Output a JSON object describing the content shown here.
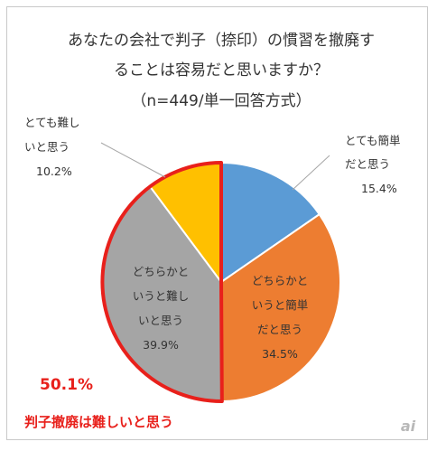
{
  "chart_data": {
    "type": "pie",
    "title_lines": [
      "あなたの会社で判子（捺印）の慣習を撤廃す",
      "ることは容易だと思いますか？",
      "（n=449/単一回答方式）"
    ],
    "slices": [
      {
        "label_lines": [
          "とても簡単",
          "だと思う"
        ],
        "value": 15.4,
        "value_text": "15.4%",
        "color": "#5b9bd5"
      },
      {
        "label_lines": [
          "どちらかと",
          "いうと簡単",
          "だと思う"
        ],
        "value": 34.5,
        "value_text": "34.5%",
        "color": "#ed7d31"
      },
      {
        "label_lines": [
          "どちらかと",
          "いうと難し",
          "いと思う"
        ],
        "value": 39.9,
        "value_text": "39.9%",
        "color": "#a5a5a5"
      },
      {
        "label_lines": [
          "とても難し",
          "いと思う"
        ],
        "value": 10.2,
        "value_text": "10.2%",
        "color": "#ffc000"
      }
    ],
    "highlight": {
      "value_text": "50.1%",
      "label": "判子撤廃は難しいと思う",
      "color": "#e8201b"
    }
  },
  "watermark": "ai"
}
